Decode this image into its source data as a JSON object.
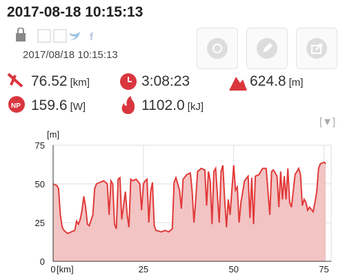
{
  "header": {
    "title": "2017-08-18 10:15:13",
    "date": "2017/08/18 10:15:13"
  },
  "stats": [
    {
      "value": "76.52",
      "unit": "[km]"
    },
    {
      "value": "3:08:23"
    },
    {
      "value": "624.8",
      "unit": "[m]"
    },
    {
      "value": "159.6",
      "unit": "[W]"
    },
    {
      "value": "1102.0",
      "unit": "[kJ]"
    }
  ],
  "toggle": "[▼]",
  "chart_data": {
    "type": "area",
    "y_label": "[m]",
    "x_label": "[km]",
    "color": "#e23a3a",
    "fill": "#f2c4c4",
    "grid": true,
    "xlim": [
      0,
      77
    ],
    "ylim": [
      0,
      75
    ],
    "xticks": [
      0,
      25,
      50,
      75
    ],
    "yticks": [
      0,
      25,
      50,
      75
    ],
    "x": [
      0,
      1,
      1.5,
      2,
      2.5,
      3,
      4,
      5,
      6,
      6.5,
      7,
      7.5,
      8,
      8.5,
      9,
      9.5,
      10,
      11,
      11.5,
      12,
      13,
      14,
      15,
      15.5,
      16,
      16.5,
      17,
      17.5,
      18,
      18.5,
      19,
      20,
      20.5,
      21,
      21.5,
      22,
      23,
      24,
      24.5,
      25,
      25.5,
      26,
      26.5,
      27,
      27.5,
      28,
      28.5,
      30,
      31,
      32,
      33,
      33.5,
      34,
      35,
      35.5,
      36,
      37,
      38,
      38.5,
      39,
      39.5,
      40,
      41,
      42,
      42.5,
      43,
      43.5,
      44,
      44.5,
      45,
      46,
      46.5,
      47,
      47.5,
      48,
      48.5,
      49,
      50,
      50.5,
      51,
      51.5,
      52,
      53,
      54,
      54.5,
      55,
      55.5,
      56,
      57,
      58,
      59,
      59.5,
      60,
      60.5,
      61,
      62,
      62.5,
      63,
      63.5,
      64,
      64.5,
      65,
      65.5,
      66,
      67,
      68,
      68.5,
      69,
      69.5,
      70,
      70.5,
      71,
      72,
      72.5,
      73,
      73.5,
      74,
      75,
      75.5
    ],
    "values": [
      50,
      49,
      47,
      30,
      22,
      20,
      18,
      19,
      20,
      26,
      24,
      27,
      33,
      42,
      35,
      24,
      23,
      30,
      47,
      50,
      51,
      52,
      50,
      30,
      52,
      50,
      24,
      21,
      53,
      54,
      27,
      45,
      30,
      22,
      53,
      52,
      53,
      50,
      33,
      50,
      52,
      53,
      25,
      45,
      51,
      23,
      20,
      19,
      20,
      19,
      21,
      51,
      54,
      46,
      34,
      53,
      56,
      57,
      45,
      25,
      40,
      58,
      60,
      59,
      36,
      58,
      52,
      24,
      58,
      60,
      25,
      58,
      62,
      40,
      22,
      40,
      30,
      62,
      46,
      48,
      25,
      38,
      52,
      55,
      28,
      54,
      24,
      55,
      56,
      60,
      60,
      45,
      30,
      58,
      59,
      55,
      35,
      58,
      40,
      55,
      40,
      60,
      38,
      35,
      56,
      60,
      56,
      36,
      40,
      38,
      33,
      35,
      32,
      38,
      45,
      60,
      63,
      64,
      63
    ]
  }
}
